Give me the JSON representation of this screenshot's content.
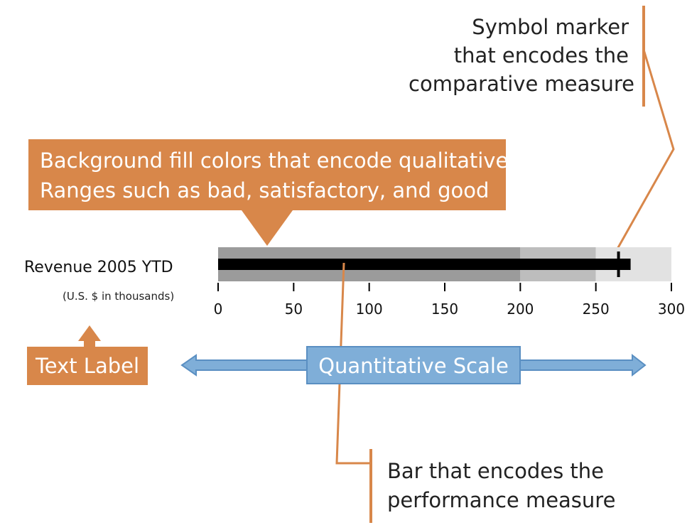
{
  "chart_data": {
    "type": "bullet",
    "title": "Revenue 2005 YTD",
    "subtitle": "(U.S. $ in thousands)",
    "xlim": [
      0,
      300
    ],
    "ticks": [
      0,
      50,
      100,
      150,
      200,
      250,
      300
    ],
    "tick_labels": [
      "0",
      "50",
      "100",
      "150",
      "200",
      "250",
      "300"
    ],
    "ranges": [
      {
        "from": 0,
        "to": 200,
        "color": "#9b9b9b"
      },
      {
        "from": 200,
        "to": 250,
        "color": "#bdbdbd"
      },
      {
        "from": 250,
        "to": 300,
        "color": "#e2e2e2"
      }
    ],
    "performance_measure": 273,
    "comparative_measure": 265,
    "bar_color": "#000000"
  },
  "annotations": {
    "marker_callout": [
      "Symbol marker",
      "that encodes the",
      "comparative measure"
    ],
    "ranges_callout": [
      "Background fill colors that encode qualitative",
      "Ranges such as bad, satisfactory, and good"
    ],
    "text_label_callout": "Text Label",
    "scale_callout": "Quantitative Scale",
    "bar_callout": [
      "Bar that encodes the",
      "performance measure"
    ]
  },
  "colors": {
    "callout_orange": "#d8874a",
    "scale_blue": "#7faed8",
    "scale_blue_border": "#5a8fc2",
    "text_white": "#ffffff",
    "text_dark": "#222222"
  }
}
